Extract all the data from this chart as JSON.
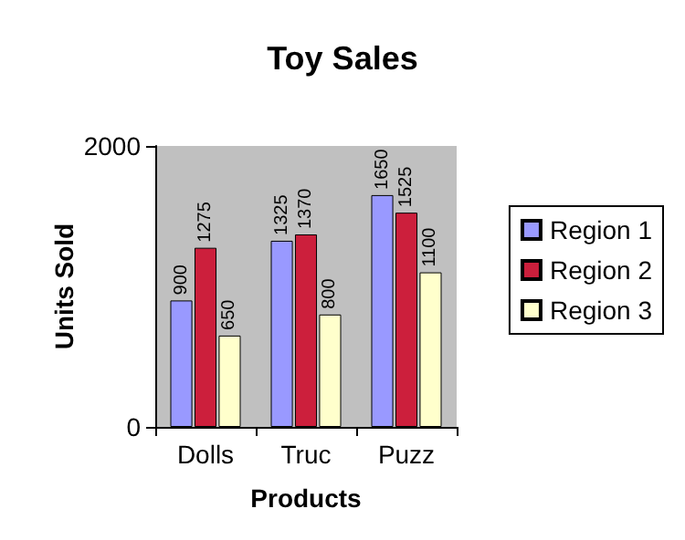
{
  "chart_data": {
    "type": "bar",
    "title": "Toy Sales",
    "xlabel": "Products",
    "ylabel": "Units Sold",
    "categories": [
      "Dolls",
      "Truc",
      "Puzz"
    ],
    "series": [
      {
        "name": "Region 1",
        "color": "#9999ff",
        "values": [
          900,
          1325,
          1650
        ]
      },
      {
        "name": "Region 2",
        "color": "#cc1f3c",
        "values": [
          1275,
          1370,
          1525
        ]
      },
      {
        "name": "Region 3",
        "color": "#ffffcc",
        "values": [
          650,
          800,
          1100
        ]
      }
    ],
    "ylim": [
      0,
      2000
    ],
    "yticks": [
      0,
      2000
    ],
    "grid": false,
    "legend": "right",
    "data_labels": true
  }
}
